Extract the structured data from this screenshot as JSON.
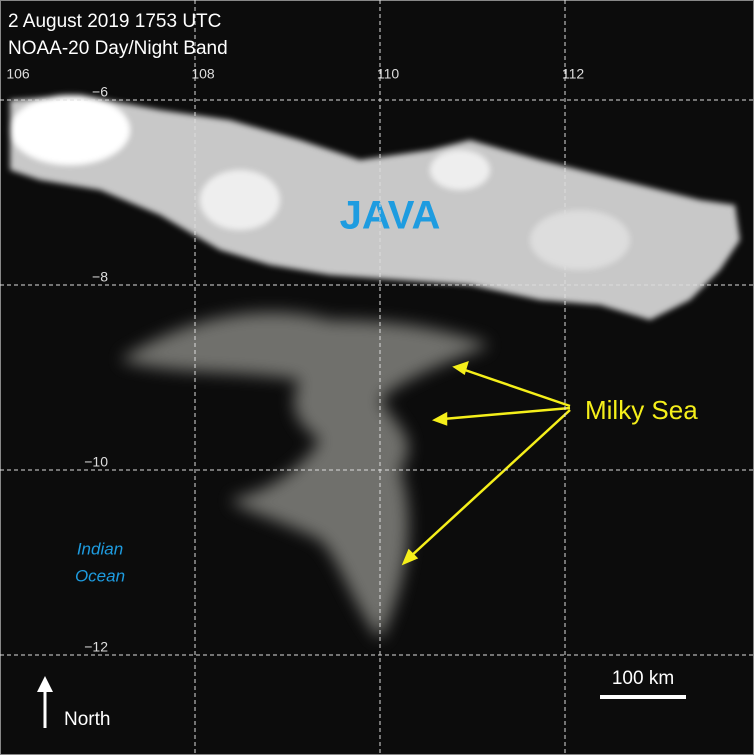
{
  "title_lines": [
    "2 August 2019 1753 UTC",
    "NOAA-20 Day/Night Band"
  ],
  "longitudes": [
    106,
    108,
    110,
    112
  ],
  "latitudes": [
    {
      "value": -6,
      "label": "−6"
    },
    {
      "value": -8,
      "label": "−8"
    },
    {
      "value": -10,
      "label": "−10"
    },
    {
      "value": -12,
      "label": "−12"
    }
  ],
  "labels": {
    "island": "JAVA",
    "milky_sea": "Milky Sea",
    "ocean": [
      "Indian",
      "Ocean"
    ]
  },
  "north": "North",
  "scale": "100 km"
}
